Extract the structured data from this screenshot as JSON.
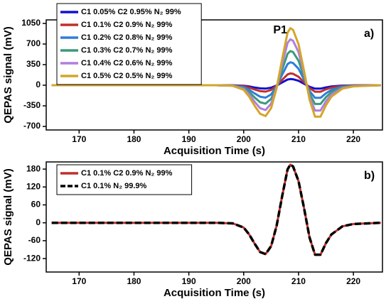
{
  "chart_data": [
    {
      "type": "line",
      "panel": "a)",
      "annotation": "P1",
      "xlabel": "Acquisition Time (s)",
      "ylabel": "QEPAS signal (mV)",
      "xlim": [
        164,
        225.3
      ],
      "xticks": [
        170,
        180,
        190,
        200,
        210,
        220
      ],
      "ylim": [
        -760,
        1110
      ],
      "yticks": [
        -700,
        -350,
        0,
        350,
        700,
        1050
      ],
      "legend": "upper left",
      "x": [
        165,
        175,
        185,
        195,
        198,
        200,
        201,
        202,
        203,
        204,
        205,
        206,
        207,
        208,
        208.5,
        209,
        210,
        211,
        212,
        213,
        214,
        215,
        216,
        218,
        220,
        225
      ],
      "series": [
        {
          "name": "C1 0.05% C2 0.95% N₂ 99%",
          "color": "#1010d0",
          "line_style": "solid",
          "values": [
            0,
            0,
            0,
            0,
            -1,
            -8,
            -21,
            -38,
            -53,
            -57,
            -42,
            -5,
            47,
            97,
            105,
            102,
            76,
            26,
            -26,
            -58,
            -58,
            -37,
            -21,
            -6,
            -2,
            0
          ]
        },
        {
          "name": "C1 0.1% C2 0.9% N₂ 99%",
          "color": "#c0302a",
          "line_style": "solid",
          "values": [
            0,
            0,
            0,
            0,
            -2,
            -16,
            -40,
            -72,
            -100,
            -108,
            -80,
            -10,
            90,
            184,
            200,
            194,
            144,
            50,
            -50,
            -110,
            -110,
            -70,
            -40,
            -12,
            -4,
            0
          ]
        },
        {
          "name": "C1 0.2% C2 0.8% N₂ 99%",
          "color": "#2f7fd8",
          "line_style": "solid",
          "values": [
            0,
            0,
            0,
            0,
            -4,
            -31,
            -78,
            -140,
            -195,
            -211,
            -156,
            -20,
            176,
            359,
            390,
            378,
            281,
            98,
            -98,
            -215,
            -215,
            -137,
            -78,
            -23,
            -8,
            0
          ]
        },
        {
          "name": "C1 0.3% C2 0.7% N₂ 99%",
          "color": "#3a9a78",
          "line_style": "solid",
          "values": [
            0,
            0,
            0,
            0,
            -6,
            -46,
            -116,
            -209,
            -290,
            -313,
            -232,
            -29,
            261,
            534,
            580,
            563,
            418,
            145,
            -145,
            -319,
            -319,
            -203,
            -116,
            -35,
            -12,
            0
          ]
        },
        {
          "name": "C1 0.4% C2 0.6% N₂ 99%",
          "color": "#b07ee0",
          "line_style": "solid",
          "values": [
            0,
            0,
            0,
            0,
            -8,
            -62,
            -156,
            -281,
            -390,
            -421,
            -312,
            -39,
            351,
            718,
            780,
            757,
            562,
            195,
            -195,
            -429,
            -429,
            -273,
            -156,
            -47,
            -16,
            0
          ]
        },
        {
          "name": "C1 0.5% C2 0.5% N₂ 99%",
          "color": "#d4a52a",
          "line_style": "solid",
          "values": [
            0,
            0,
            0,
            0,
            -10,
            -78,
            -194,
            -349,
            -485,
            -524,
            -388,
            -49,
            437,
            892,
            970,
            941,
            698,
            243,
            -243,
            -534,
            -534,
            -340,
            -194,
            -58,
            -19,
            0
          ]
        }
      ]
    },
    {
      "type": "line",
      "panel": "b)",
      "xlabel": "Acquisition Time (s)",
      "ylabel": "QEPAS signal (mV)",
      "xlim": [
        164,
        225.3
      ],
      "xticks": [
        170,
        180,
        190,
        200,
        210,
        220
      ],
      "ylim": [
        -165,
        204
      ],
      "yticks": [
        -120,
        -60,
        0,
        60,
        120,
        180
      ],
      "legend": "upper left",
      "x": [
        165,
        175,
        185,
        195,
        198,
        200,
        201,
        202,
        203,
        204,
        205,
        206,
        207,
        208,
        208.5,
        209,
        210,
        211,
        212,
        213,
        214,
        215,
        216,
        218,
        220,
        225
      ],
      "series": [
        {
          "name": "C1 0.1% C2 0.9% N₂ 99%",
          "color": "#c0302a",
          "line_style": "solid",
          "values": [
            0,
            0,
            0,
            0,
            -2,
            -16,
            -39,
            -70,
            -98,
            -105,
            -78,
            -10,
            88,
            179,
            195,
            189,
            140,
            49,
            -49,
            -107,
            -107,
            -68,
            -39,
            -12,
            -4,
            0
          ]
        },
        {
          "name": "C1 0.1% N₂ 99.9%",
          "color": "#000000",
          "line_style": "dashed",
          "values": [
            0,
            0,
            0,
            0,
            -2,
            -16,
            -39,
            -70,
            -98,
            -105,
            -78,
            -10,
            88,
            179,
            195,
            189,
            140,
            49,
            -49,
            -107,
            -107,
            -68,
            -39,
            -12,
            -4,
            0
          ]
        }
      ]
    }
  ]
}
